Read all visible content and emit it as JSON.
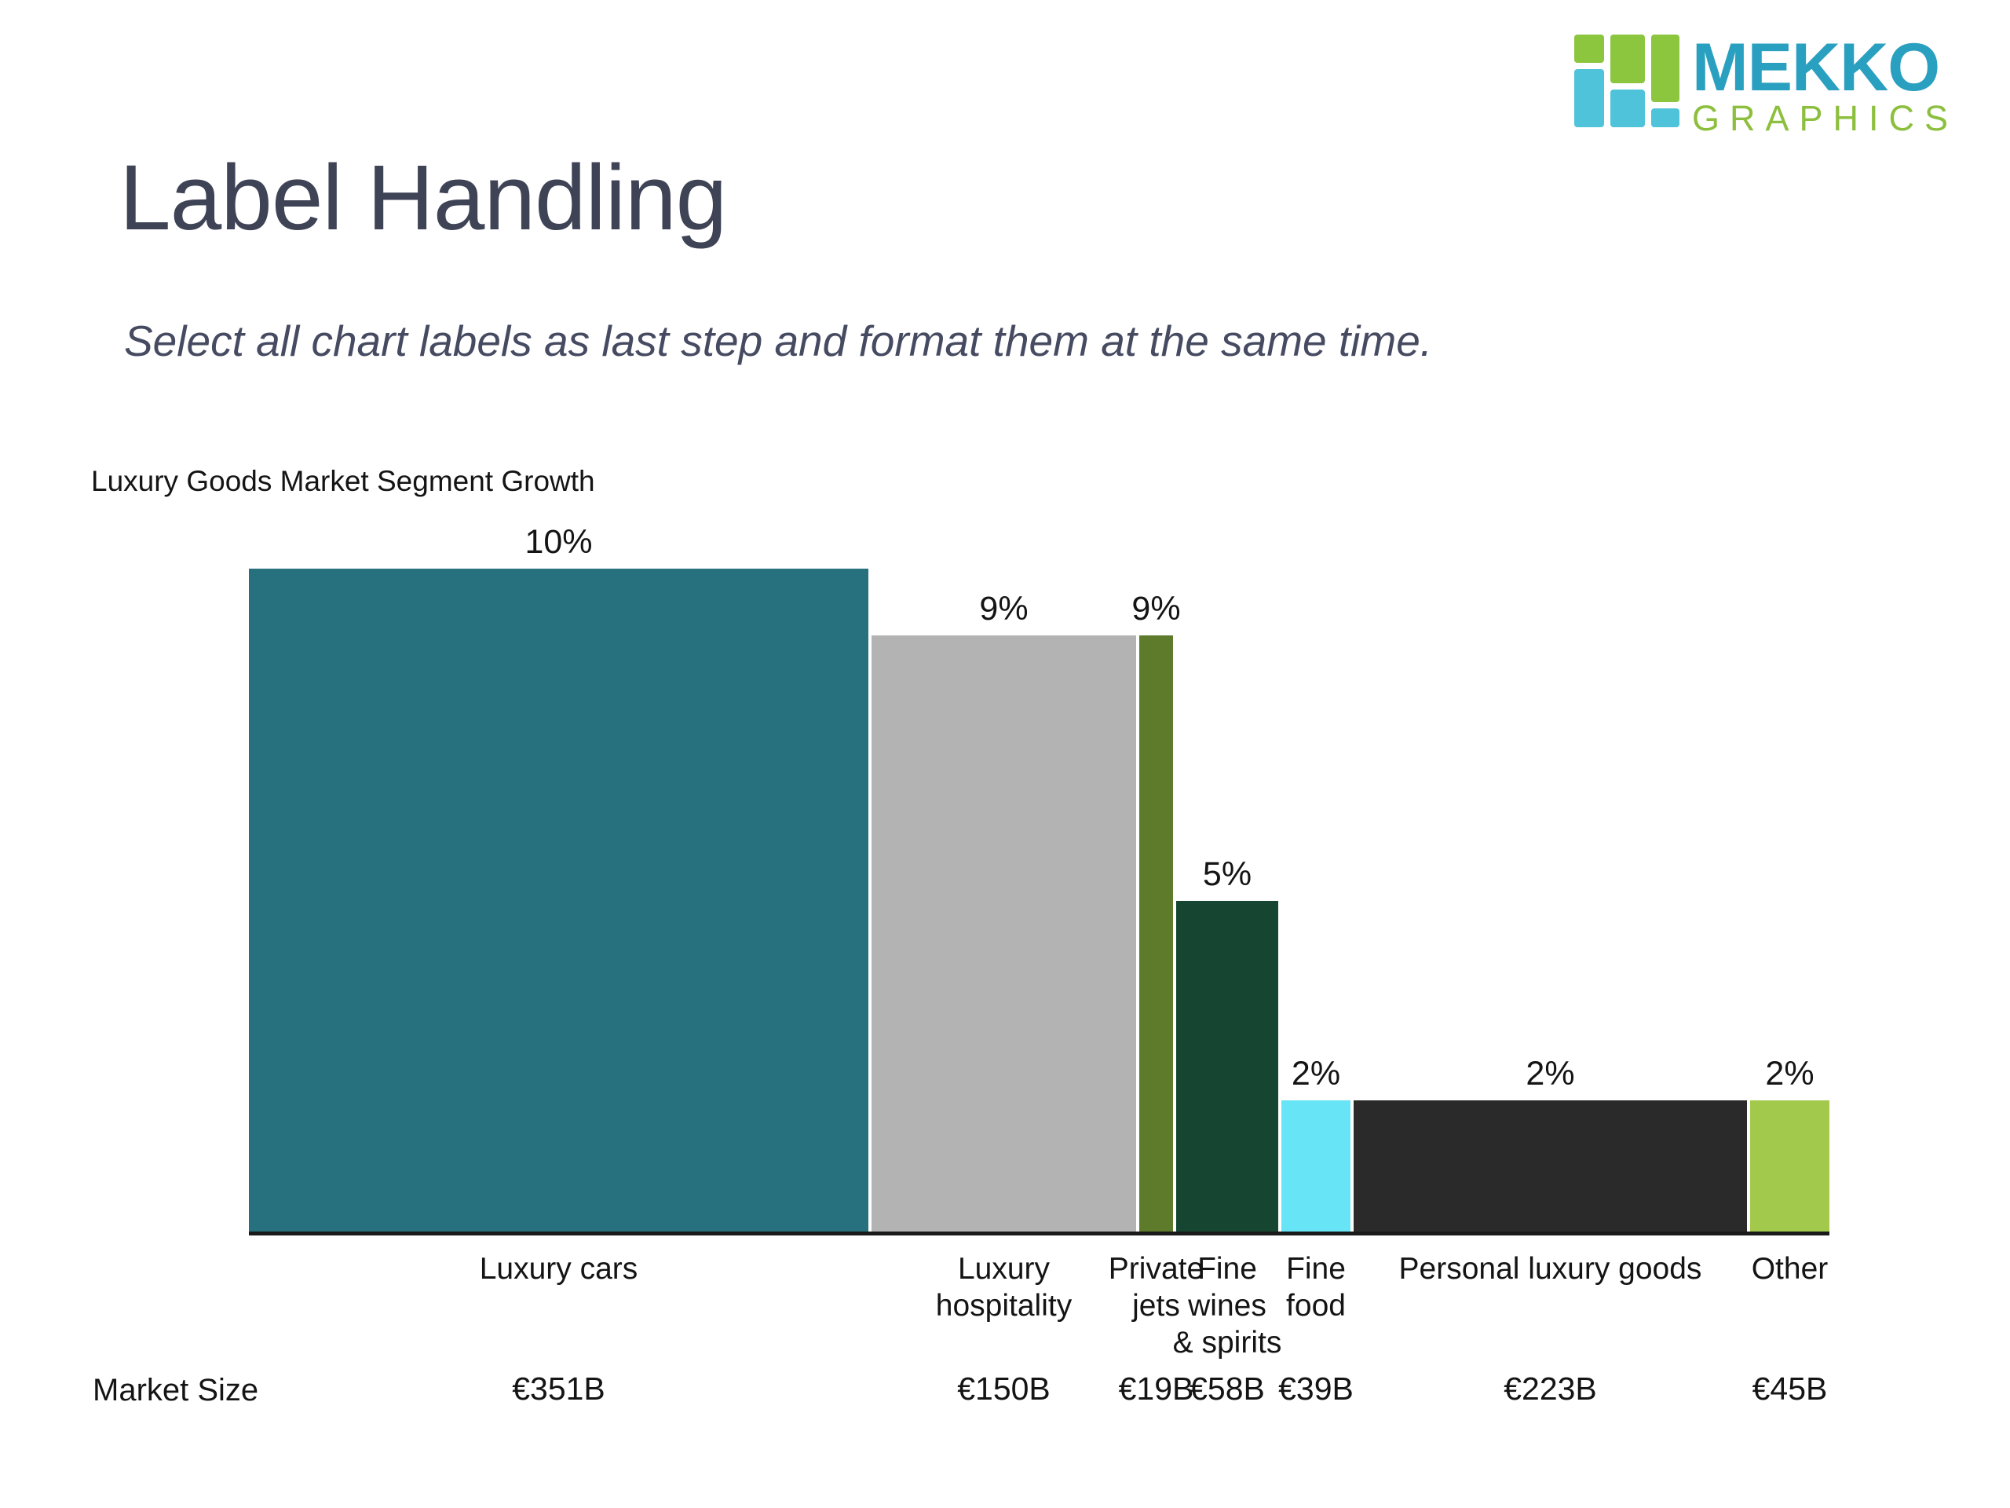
{
  "logo": {
    "name": "MEKKO",
    "subname": "GRAPHICS",
    "brand_teal": "#2aa0c0",
    "brand_green": "#8cbf3d",
    "mark_green": "#8cc63e",
    "mark_cyan": "#4ec3d9"
  },
  "header": {
    "title": "Label Handling",
    "subtitle": "Select all chart labels as last step and format them at the same time."
  },
  "chart_data": {
    "type": "bar",
    "variant": "bar-mekko",
    "title": "Luxury Goods Market Segment Growth",
    "row_label": "Market Size",
    "value_unit": "%",
    "bar_widths_represent": "market size (EUR billions)",
    "grid": false,
    "legend": "none",
    "categories": [
      "Luxury cars",
      "Luxury hospitality",
      "Private jets",
      "Fine wines & spirits",
      "Fine food",
      "Personal luxury goods",
      "Other"
    ],
    "values": [
      10,
      9,
      9,
      5,
      2,
      2,
      2
    ],
    "market_sizes_eur_b": [
      351,
      150,
      19,
      58,
      39,
      223,
      45
    ],
    "bars": [
      {
        "label": "Luxury cars",
        "label_lines": [
          "Luxury cars"
        ],
        "growth_pct": 10,
        "growth_label": "10%",
        "market_size_eur_b": 351,
        "market_size_label": "€351B",
        "color": "#27707e"
      },
      {
        "label": "Luxury hospitality",
        "label_lines": [
          "Luxury",
          "hospitality"
        ],
        "growth_pct": 9,
        "growth_label": "9%",
        "market_size_eur_b": 150,
        "market_size_label": "€150B",
        "color": "#b3b3b3"
      },
      {
        "label": "Private jets",
        "label_lines": [
          "Private",
          "jets"
        ],
        "growth_pct": 9,
        "growth_label": "9%",
        "market_size_eur_b": 19,
        "market_size_label": "€19B",
        "color": "#5e7a2b"
      },
      {
        "label": "Fine wines & spirits",
        "label_lines": [
          "Fine",
          "wines",
          "& spirits"
        ],
        "growth_pct": 5,
        "growth_label": "5%",
        "market_size_eur_b": 58,
        "market_size_label": "€58B",
        "color": "#164631"
      },
      {
        "label": "Fine food",
        "label_lines": [
          "Fine",
          "food"
        ],
        "growth_pct": 2,
        "growth_label": "2%",
        "market_size_eur_b": 39,
        "market_size_label": "€39B",
        "color": "#67e4f5"
      },
      {
        "label": "Personal luxury goods",
        "label_lines": [
          "Personal luxury goods"
        ],
        "growth_pct": 2,
        "growth_label": "2%",
        "market_size_eur_b": 223,
        "market_size_label": "€223B",
        "color": "#2a2a2a"
      },
      {
        "label": "Other",
        "label_lines": [
          "Other"
        ],
        "growth_pct": 2,
        "growth_label": "2%",
        "market_size_eur_b": 45,
        "market_size_label": "€45B",
        "color": "#a3c94c"
      }
    ]
  }
}
